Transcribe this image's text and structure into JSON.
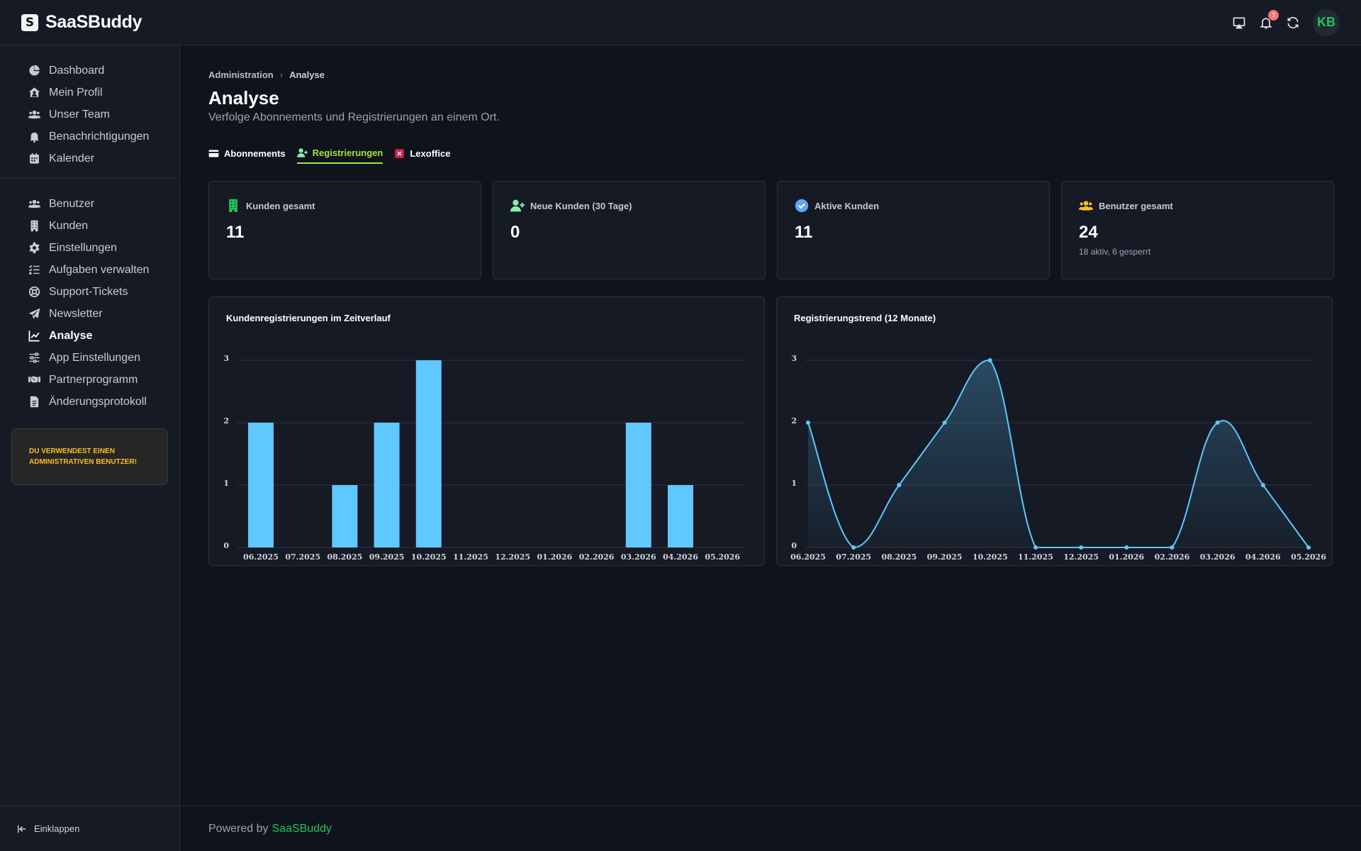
{
  "app": {
    "name": "SaaSBuddy",
    "logo_letter": "S"
  },
  "topbar": {
    "icons": [
      "cast-icon",
      "bell-icon",
      "refresh-icon"
    ],
    "notification_count": "3",
    "avatar_initials": "KB",
    "avatar_color": "#22c55e"
  },
  "sidebar": {
    "group1": [
      {
        "label": "Dashboard",
        "icon": "pie-chart-icon"
      },
      {
        "label": "Mein Profil",
        "icon": "home-user-icon"
      },
      {
        "label": "Unser Team",
        "icon": "users-icon"
      },
      {
        "label": "Benachrichtigungen",
        "icon": "bell-icon"
      },
      {
        "label": "Kalender",
        "icon": "calendar-icon"
      }
    ],
    "group2": [
      {
        "label": "Benutzer",
        "icon": "users-icon"
      },
      {
        "label": "Kunden",
        "icon": "building-icon"
      },
      {
        "label": "Einstellungen",
        "icon": "gear-icon"
      },
      {
        "label": "Aufgaben verwalten",
        "icon": "task-list-icon"
      },
      {
        "label": "Support-Tickets",
        "icon": "lifebuoy-icon"
      },
      {
        "label": "Newsletter",
        "icon": "paper-plane-icon"
      },
      {
        "label": "Analyse",
        "icon": "line-chart-icon",
        "active": true
      },
      {
        "label": "App Einstellungen",
        "icon": "sliders-icon"
      },
      {
        "label": "Partnerprogramm",
        "icon": "handshake-icon"
      },
      {
        "label": "Änderungsprotokoll",
        "icon": "document-icon"
      }
    ],
    "admin_note": "DU VERWENDEST EINEN ADMINISTRATIVEN BENUTZER!",
    "collapse_label": "Einklappen"
  },
  "breadcrumb": {
    "parent": "Administration",
    "separator": "›",
    "current": "Analyse"
  },
  "page": {
    "title": "Analyse",
    "subtitle": "Verfolge Abonnements und Registrierungen an einem Ort."
  },
  "tabs": [
    {
      "label": "Abonnements",
      "icon": "credit-card-icon"
    },
    {
      "label": "Registrierungen",
      "icon": "user-plus-icon",
      "active": true
    },
    {
      "label": "Lexoffice",
      "icon": "x-box-icon"
    }
  ],
  "stats": [
    {
      "label": "Kunden gesamt",
      "value": "11",
      "extra": "",
      "icon": "building-icon",
      "color": "#22c55e"
    },
    {
      "label": "Neue Kunden (30 Tage)",
      "value": "0",
      "extra": "",
      "icon": "user-plus-icon",
      "color": "#86efac"
    },
    {
      "label": "Aktive Kunden",
      "value": "11",
      "extra": "",
      "icon": "check-circle-icon",
      "color": "#60a5fa"
    },
    {
      "label": "Benutzer gesamt",
      "value": "24",
      "extra": "18 aktiv, 6 gesperrt",
      "icon": "users-icon",
      "color": "#fbbf24"
    }
  ],
  "chart_data": [
    {
      "type": "bar",
      "title": "Kundenregistrierungen im Zeitverlauf",
      "categories": [
        "06.2025",
        "07.2025",
        "08.2025",
        "09.2025",
        "10.2025",
        "11.2025",
        "12.2025",
        "01.2026",
        "02.2026",
        "03.2026",
        "04.2026",
        "05.2026"
      ],
      "values": [
        2,
        0,
        1,
        2,
        3,
        0,
        0,
        0,
        0,
        2,
        1,
        0
      ],
      "ylim": [
        0,
        3
      ],
      "yticks": [
        "0",
        "1",
        "2",
        "3"
      ],
      "grid": true,
      "color": "#5ec8ff"
    },
    {
      "type": "area",
      "title": "Registrierungstrend (12 Monate)",
      "categories": [
        "06.2025",
        "07.2025",
        "08.2025",
        "09.2025",
        "10.2025",
        "11.2025",
        "12.2025",
        "01.2026",
        "02.2026",
        "03.2026",
        "04.2026",
        "05.2026"
      ],
      "values": [
        2,
        0,
        1,
        2,
        3,
        0,
        0,
        0,
        0,
        2,
        1,
        0
      ],
      "ylim": [
        0,
        3
      ],
      "yticks": [
        "0",
        "1",
        "2",
        "3"
      ],
      "grid": true,
      "color": "#5ec8ff"
    }
  ],
  "footer": {
    "prefix": "Powered by",
    "link": "SaaSBuddy"
  }
}
